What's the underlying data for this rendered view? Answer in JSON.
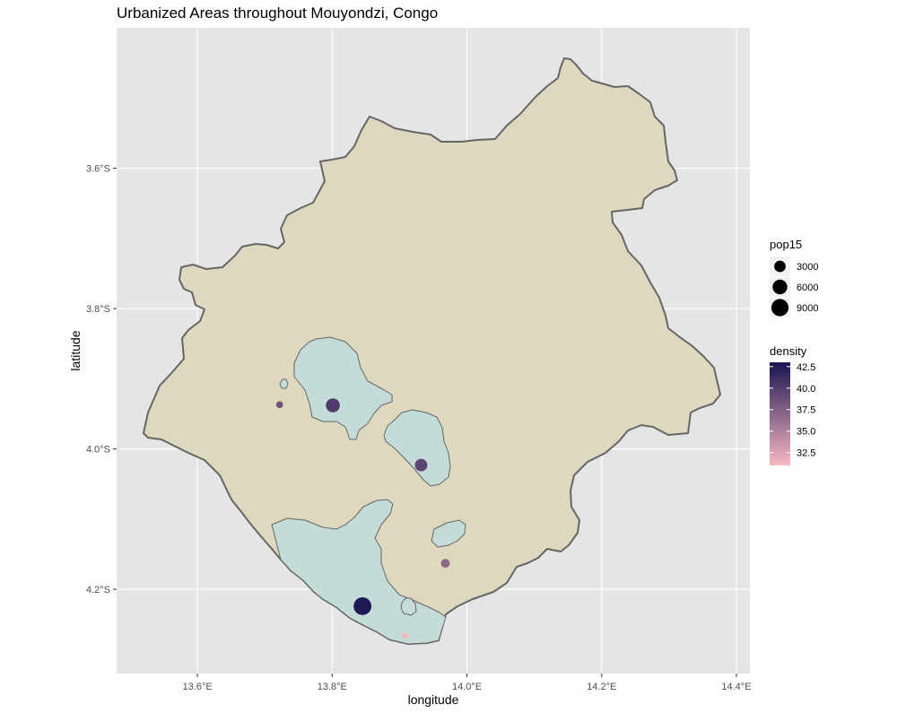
{
  "chart_data": {
    "type": "map",
    "title": "Urbanized Areas throughout Mouyondzi, Congo",
    "xlabel": "longitude",
    "ylabel": "latitude",
    "xlim": [
      13.48,
      14.42
    ],
    "ylim": [
      -4.32,
      -3.4
    ],
    "x_ticks": [
      {
        "value": 13.6,
        "label": "13.6°E"
      },
      {
        "value": 13.8,
        "label": "13.8°E"
      },
      {
        "value": 14.0,
        "label": "14.0°E"
      },
      {
        "value": 14.2,
        "label": "14.2°E"
      },
      {
        "value": 14.4,
        "label": "14.4°E"
      }
    ],
    "y_ticks": [
      {
        "value": -3.6,
        "label": "3.6°S"
      },
      {
        "value": -3.8,
        "label": "3.8°S"
      },
      {
        "value": -4.0,
        "label": "4.0°S"
      },
      {
        "value": -4.2,
        "label": "4.2°S"
      }
    ],
    "grid": true,
    "colors": {
      "panel": "#e5e5e5",
      "grid": "#ffffff",
      "region_fill": "#ded8be",
      "region_stroke": "#666666",
      "urban_fill": "#c4dcd8",
      "urban_stroke": "#666666",
      "density_low": "#f8b8c0",
      "density_high": "#1a1552"
    },
    "points": [
      {
        "lon": 13.722,
        "lat": -3.937,
        "pop15": 500,
        "density": 38.5
      },
      {
        "lon": 13.801,
        "lat": -3.938,
        "pop15": 5200,
        "density": 40.2
      },
      {
        "lon": 13.932,
        "lat": -4.023,
        "pop15": 3800,
        "density": 39.4
      },
      {
        "lon": 13.968,
        "lat": -4.163,
        "pop15": 1400,
        "density": 36.8
      },
      {
        "lon": 13.845,
        "lat": -4.224,
        "pop15": 9800,
        "density": 42.8
      },
      {
        "lon": 13.908,
        "lat": -4.266,
        "pop15": 300,
        "density": 31.0
      }
    ],
    "legend_size": {
      "title": "pop15",
      "entries": [
        {
          "value": 3000,
          "label": "3000"
        },
        {
          "value": 6000,
          "label": "6000"
        },
        {
          "value": 9000,
          "label": "9000"
        }
      ]
    },
    "legend_color": {
      "title": "density",
      "range": [
        31,
        43
      ],
      "ticks": [
        {
          "value": 42.5,
          "label": "42.5"
        },
        {
          "value": 40.0,
          "label": "40.0"
        },
        {
          "value": 37.5,
          "label": "37.5"
        },
        {
          "value": 35.0,
          "label": "35.0"
        },
        {
          "value": 32.5,
          "label": "32.5"
        }
      ]
    },
    "legend_position": "right"
  }
}
